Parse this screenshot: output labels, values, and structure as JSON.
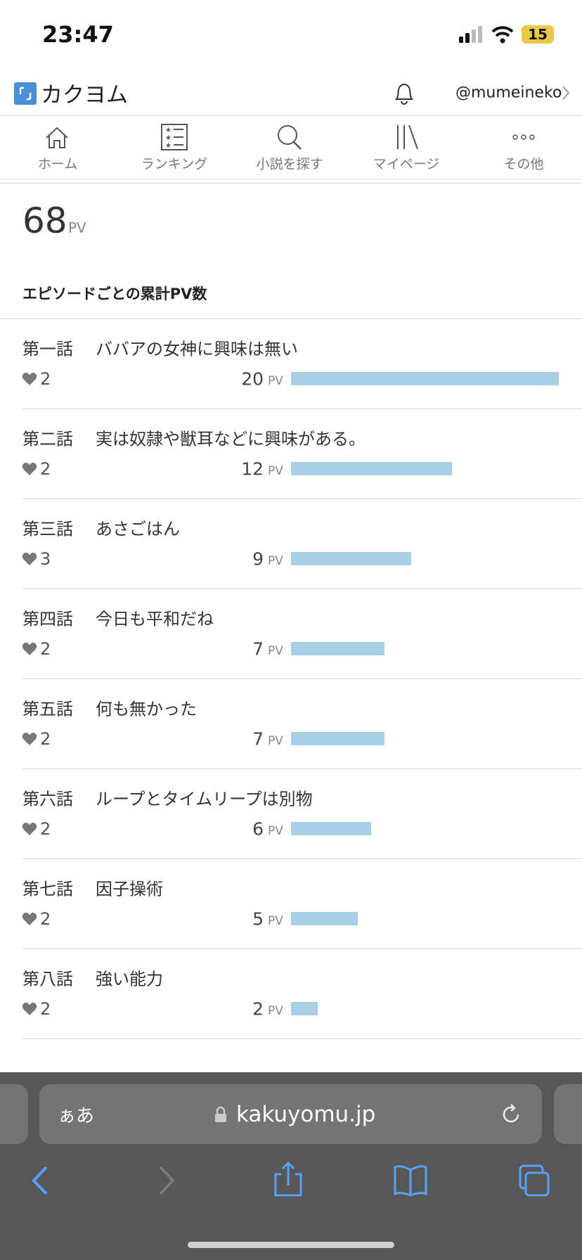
{
  "status_bar": {
    "time": "23:47",
    "battery": "15"
  },
  "header": {
    "logo": "カクヨム",
    "user": "@mumeineko"
  },
  "nav": [
    "ホーム",
    "ランキング",
    "小説を探す",
    "マイページ",
    "その他"
  ],
  "total": {
    "value": 68,
    "unit": "PV"
  },
  "section_title": "エピソードごとの累計PV数",
  "episodes": [
    {
      "number": "第一話",
      "title": "ババアの女神に興味は無い",
      "hearts": 2,
      "pv": 20
    },
    {
      "number": "第二話",
      "title": "実は奴隷や獣耳などに興味がある。",
      "hearts": 2,
      "pv": 12
    },
    {
      "number": "第三話",
      "title": "あさごはん",
      "hearts": 3,
      "pv": 9
    },
    {
      "number": "第四話",
      "title": "今日も平和だね",
      "hearts": 2,
      "pv": 7
    },
    {
      "number": "第五話",
      "title": "何も無かった",
      "hearts": 2,
      "pv": 7
    },
    {
      "number": "第六話",
      "title": "ループとタイムリープは別物",
      "hearts": 2,
      "pv": 6
    },
    {
      "number": "第七話",
      "title": "因子操術",
      "hearts": 2,
      "pv": 5
    },
    {
      "number": "第八話",
      "title": "強い能力",
      "hearts": 2,
      "pv": 2
    }
  ],
  "browser": {
    "text_size": "ぁあ",
    "url": "kakuyomu.jp"
  }
}
